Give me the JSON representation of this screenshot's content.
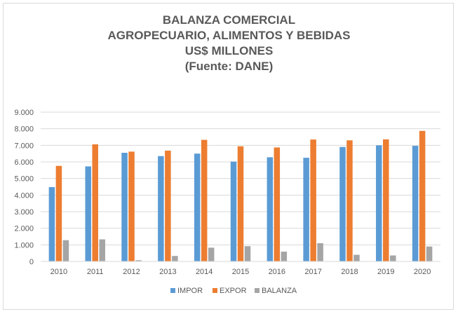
{
  "chart_data": {
    "type": "bar",
    "title_lines": [
      "BALANZA COMERCIAL",
      "AGROPECUARIO, ALIMENTOS Y BEBIDAS",
      "US$ MILLONES",
      "(Fuente: DANE)"
    ],
    "categories": [
      "2010",
      "2011",
      "2012",
      "2013",
      "2014",
      "2015",
      "2016",
      "2017",
      "2018",
      "2019",
      "2020"
    ],
    "series": [
      {
        "name": "IMPOR",
        "color": "#5b9bd5",
        "values": [
          4480,
          5730,
          6550,
          6350,
          6500,
          6020,
          6280,
          6250,
          6900,
          7000,
          6970
        ]
      },
      {
        "name": "EXPOR",
        "color": "#ed7d31",
        "values": [
          5760,
          7060,
          6620,
          6680,
          7330,
          6940,
          6870,
          7350,
          7300,
          7360,
          7870
        ]
      },
      {
        "name": "BALANZA",
        "color": "#a5a5a5",
        "values": [
          1280,
          1330,
          70,
          330,
          830,
          920,
          590,
          1100,
          400,
          360,
          900
        ]
      }
    ],
    "ylim": [
      0,
      9000
    ],
    "yticks": [
      0,
      1000,
      2000,
      3000,
      4000,
      5000,
      6000,
      7000,
      8000,
      9000
    ],
    "ytick_labels": [
      "0",
      "1.000",
      "2.000",
      "3.000",
      "4.000",
      "5.000",
      "6.000",
      "7.000",
      "8.000",
      "9.000"
    ],
    "grid": true,
    "legend_position": "bottom"
  }
}
